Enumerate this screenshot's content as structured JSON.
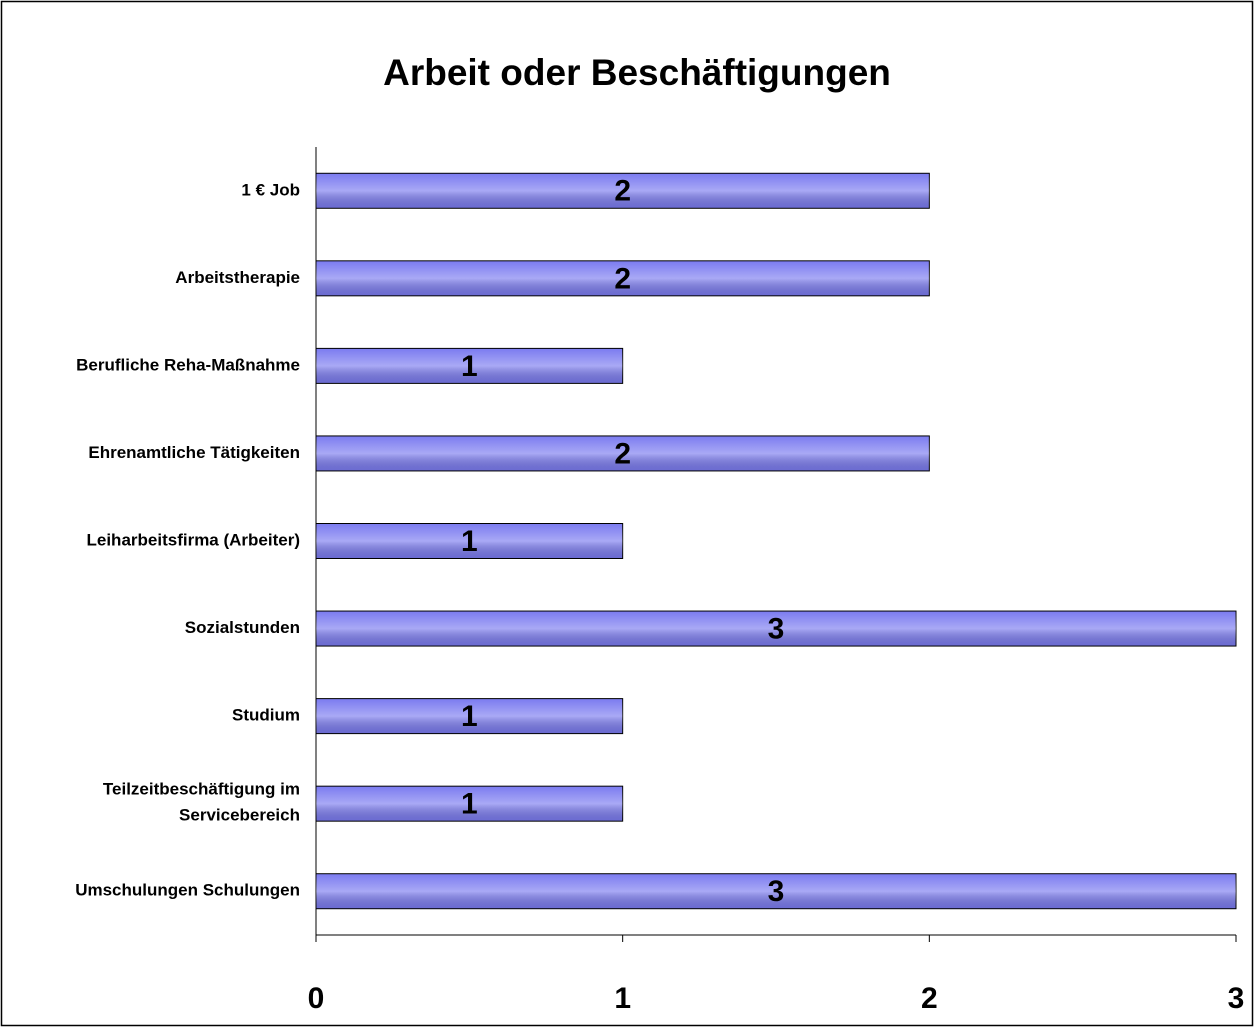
{
  "chart_data": {
    "type": "bar",
    "orientation": "horizontal",
    "title": "Arbeit oder Beschäftigungen",
    "categories": [
      "1 € Job",
      "Arbeitstherapie",
      "Berufliche Reha-Maßnahme",
      "Ehrenamtliche Tätigkeiten",
      "Leiharbeitsfirma (Arbeiter)",
      "Sozialstunden",
      "Studium",
      "Teilzeitbeschäftigung im Servicebereich",
      "Umschulungen Schulungen"
    ],
    "values": [
      2,
      2,
      1,
      2,
      1,
      3,
      1,
      1,
      3
    ],
    "color": "#7b7bf0",
    "xlim": [
      0,
      3
    ],
    "xticks": [
      0,
      1,
      2,
      3
    ],
    "grid": false
  }
}
